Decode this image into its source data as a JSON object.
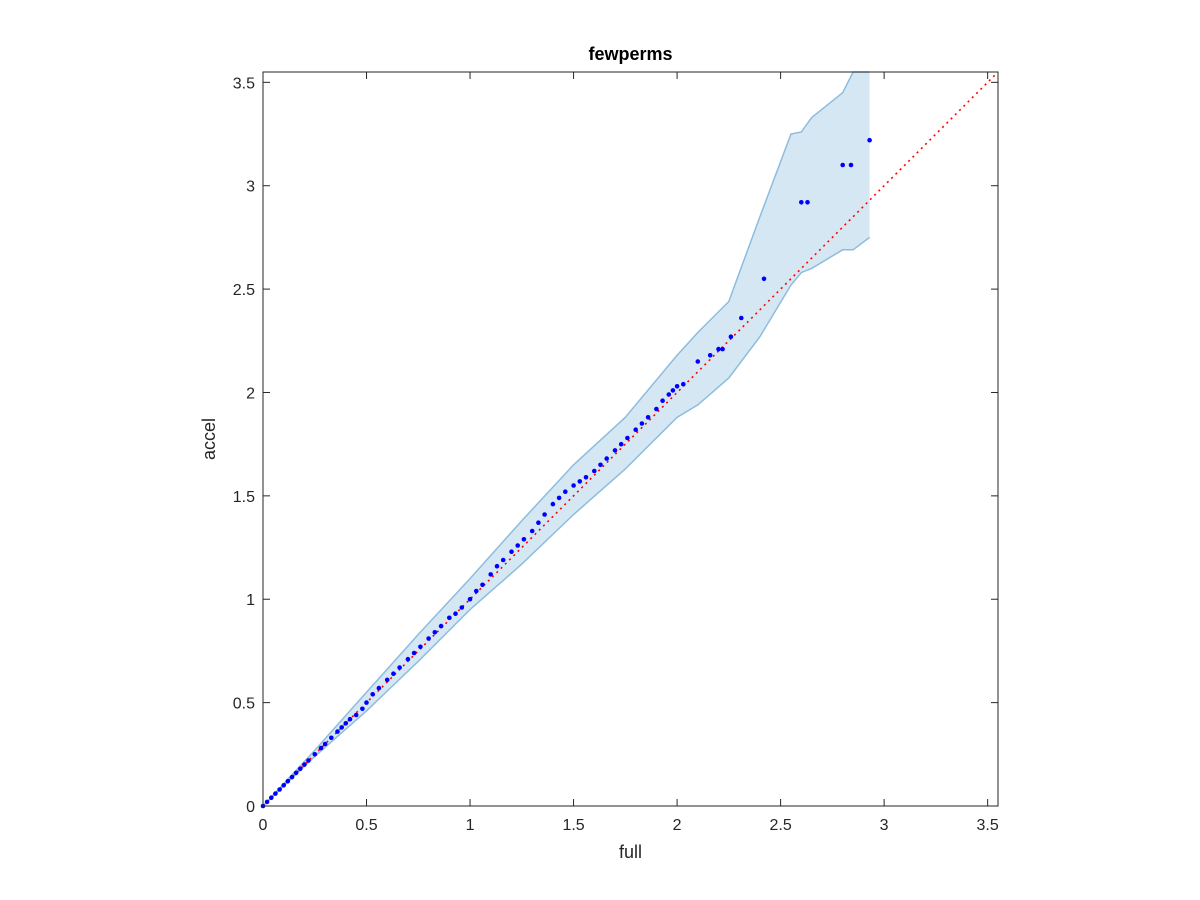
{
  "chart_data": {
    "type": "scatter",
    "title": "fewperms",
    "xlabel": "full",
    "ylabel": "accel",
    "xlim": [
      0,
      3.55
    ],
    "ylim": [
      0,
      3.55
    ],
    "grid": false,
    "x_ticks": [
      0,
      0.5,
      1,
      1.5,
      2,
      2.5,
      3,
      3.5
    ],
    "x_tick_labels": [
      "0",
      "0.5",
      "1",
      "1.5",
      "2",
      "2.5",
      "3",
      "3.5"
    ],
    "y_ticks": [
      0,
      0.5,
      1,
      1.5,
      2,
      2.5,
      3,
      3.5
    ],
    "y_tick_labels": [
      "0",
      "0.5",
      "1",
      "1.5",
      "2",
      "2.5",
      "3",
      "3.5"
    ],
    "reference_line": {
      "x": [
        0,
        3.55
      ],
      "y": [
        0,
        3.55
      ],
      "style": "dotted",
      "color": "#ff0000"
    },
    "band": {
      "x": [
        0,
        0.25,
        0.5,
        0.75,
        1.0,
        1.25,
        1.5,
        1.75,
        2.0,
        2.1,
        2.25,
        2.4,
        2.55,
        2.6,
        2.65,
        2.8,
        2.85,
        2.93
      ],
      "upper": [
        0,
        0.27,
        0.55,
        0.83,
        1.1,
        1.38,
        1.65,
        1.88,
        2.18,
        2.29,
        2.44,
        2.85,
        3.25,
        3.26,
        3.33,
        3.45,
        3.55,
        3.55
      ],
      "lower": [
        0,
        0.24,
        0.46,
        0.7,
        0.95,
        1.17,
        1.41,
        1.63,
        1.88,
        1.94,
        2.07,
        2.27,
        2.52,
        2.58,
        2.6,
        2.69,
        2.69,
        2.75
      ],
      "fill": "#d6e7f4",
      "stroke": "#8dbcde"
    },
    "series": [
      {
        "marker_color": "#0000ff",
        "x": [
          0,
          0.02,
          0.04,
          0.06,
          0.08,
          0.1,
          0.12,
          0.14,
          0.16,
          0.18,
          0.2,
          0.22,
          0.25,
          0.28,
          0.3,
          0.33,
          0.36,
          0.38,
          0.4,
          0.42,
          0.45,
          0.48,
          0.5,
          0.53,
          0.56,
          0.6,
          0.63,
          0.66,
          0.7,
          0.73,
          0.76,
          0.8,
          0.83,
          0.86,
          0.9,
          0.93,
          0.96,
          1.0,
          1.03,
          1.06,
          1.1,
          1.13,
          1.16,
          1.2,
          1.23,
          1.26,
          1.3,
          1.33,
          1.36,
          1.4,
          1.43,
          1.46,
          1.5,
          1.53,
          1.56,
          1.6,
          1.63,
          1.66,
          1.7,
          1.73,
          1.76,
          1.8,
          1.83,
          1.86,
          1.9,
          1.93,
          1.96,
          1.98,
          2.0,
          2.03,
          2.1,
          2.16,
          2.2,
          2.22,
          2.26,
          2.31,
          2.42,
          2.6,
          2.63,
          2.8,
          2.84,
          2.93
        ],
        "y": [
          0,
          0.02,
          0.04,
          0.06,
          0.08,
          0.1,
          0.12,
          0.14,
          0.16,
          0.18,
          0.2,
          0.22,
          0.25,
          0.28,
          0.3,
          0.33,
          0.36,
          0.38,
          0.4,
          0.42,
          0.44,
          0.47,
          0.5,
          0.54,
          0.57,
          0.61,
          0.64,
          0.67,
          0.71,
          0.74,
          0.77,
          0.81,
          0.84,
          0.87,
          0.91,
          0.93,
          0.96,
          1.0,
          1.04,
          1.07,
          1.12,
          1.16,
          1.19,
          1.23,
          1.26,
          1.29,
          1.33,
          1.37,
          1.41,
          1.46,
          1.49,
          1.52,
          1.55,
          1.57,
          1.59,
          1.62,
          1.65,
          1.68,
          1.72,
          1.75,
          1.78,
          1.82,
          1.85,
          1.88,
          1.92,
          1.96,
          1.99,
          2.01,
          2.03,
          2.04,
          2.15,
          2.18,
          2.21,
          2.21,
          2.27,
          2.36,
          2.55,
          2.92,
          2.92,
          3.1,
          3.1,
          3.22
        ]
      }
    ]
  }
}
